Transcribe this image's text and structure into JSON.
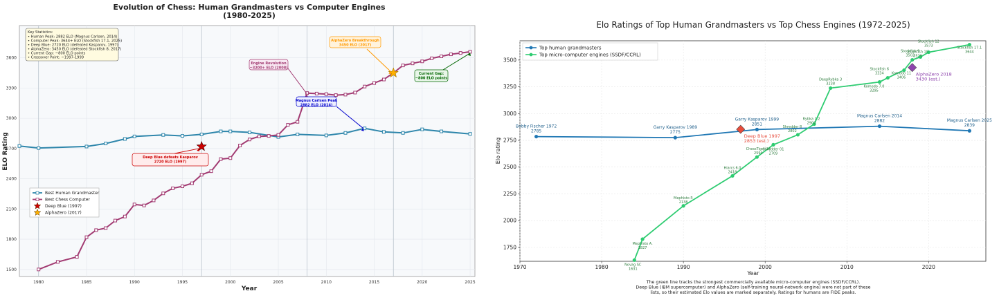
{
  "chart_data": [
    {
      "type": "line",
      "title": "Evolution of Chess: Human Grandmasters vs Computer Engines",
      "subtitle": "(1980-2025)",
      "xlabel": "Year",
      "ylabel": "ELO Rating",
      "xlim": [
        1978,
        2025.5
      ],
      "ylim": [
        1430,
        3920
      ],
      "xticks": [
        1980,
        1985,
        1990,
        1995,
        2000,
        2005,
        2010,
        2015,
        2020,
        2025
      ],
      "yticks": [
        1500,
        1800,
        2100,
        2400,
        2700,
        3000,
        3300,
        3600
      ],
      "vlines": [
        1980,
        1997,
        2008,
        2017
      ],
      "series": [
        {
          "name": "Best Human Grandmaster",
          "color": "#2e86ab",
          "x": [
            1978,
            1980,
            1985,
            1987,
            1989,
            1990,
            1993,
            1995,
            1997,
            1999,
            2000,
            2002,
            2005,
            2007,
            2010,
            2012,
            2014,
            2016,
            2018,
            2020,
            2022,
            2025
          ],
          "y": [
            2725,
            2705,
            2720,
            2750,
            2795,
            2820,
            2835,
            2825,
            2840,
            2870,
            2870,
            2860,
            2815,
            2840,
            2830,
            2855,
            2900,
            2865,
            2855,
            2890,
            2870,
            2845
          ]
        },
        {
          "name": "Best Chess Computer",
          "color": "#a23b72",
          "x": [
            1980,
            1982,
            1984,
            1985,
            1986,
            1987,
            1988,
            1989,
            1990,
            1991,
            1992,
            1993,
            1994,
            1995,
            1996,
            1997,
            1998,
            1999,
            2000,
            2001,
            2002,
            2003,
            2004,
            2005,
            2006,
            2007,
            2008,
            2009,
            2010,
            2011,
            2012,
            2013,
            2014,
            2015,
            2016,
            2017,
            2018,
            2019,
            2020,
            2021,
            2022,
            2023,
            2024,
            2025
          ],
          "y": [
            1500,
            1575,
            1625,
            1820,
            1890,
            1910,
            1985,
            2025,
            2145,
            2135,
            2185,
            2255,
            2305,
            2325,
            2355,
            2440,
            2475,
            2595,
            2605,
            2730,
            2790,
            2820,
            2825,
            2835,
            2935,
            2965,
            3250,
            3245,
            3240,
            3230,
            3235,
            3255,
            3315,
            3350,
            3385,
            3450,
            3525,
            3545,
            3565,
            3595,
            3615,
            3635,
            3648,
            3660
          ]
        },
        {
          "name": "Deep Blue (1997)",
          "x": [
            1997
          ],
          "y": [
            2720
          ],
          "color": "#cc0000",
          "marker": "star"
        },
        {
          "name": "AlphaZero (2017)",
          "x": [
            2017
          ],
          "y": [
            3450
          ],
          "color": "#ffb000",
          "marker": "star"
        }
      ],
      "stats_box": {
        "title": "Key Statistics:",
        "lines": [
          "• Human Peak: 2882 ELO (Magnus Carlsen, 2014)",
          "• Computer Peak: 3644+ ELO (Stockfish 17.1, 2025)",
          "• Deep Blue: 2720 ELO (defeated Kasparov, 1997)",
          "• AlphaZero: 3450 ELO (defeated Stockfish 8, 2017)",
          "• Current Gap: ~800 ELO points",
          "• Crossover Point: ~1997-1999"
        ]
      },
      "annotations": [
        {
          "lines": [
            "Deep Blue defeats Kasparov",
            "2720 ELO (1997)"
          ],
          "color": "#cc0000"
        },
        {
          "lines": [
            "Engine Revolution",
            "~3200+ ELO (2008)"
          ],
          "color": "#a23b72"
        },
        {
          "lines": [
            "Magnus Carlsen Peak",
            "2882 ELO (2014)"
          ],
          "color": "#0000cc"
        },
        {
          "lines": [
            "AlphaZero Breakthrough",
            "3450 ELO (2017)"
          ],
          "color": "#ff9900"
        },
        {
          "lines": [
            "Current Gap:",
            "~800 ELO points"
          ],
          "color": "#006600"
        }
      ],
      "legend_position": "lower-left"
    },
    {
      "type": "line",
      "title": "Elo Ratings of Top Human Grandmasters vs Top Chess Engines (1972-2025)",
      "xlabel": "Year",
      "ylabel": "Elo rating",
      "xlim": [
        1970,
        2027
      ],
      "ylim": [
        1620,
        3680
      ],
      "xticks": [
        1970,
        1980,
        1990,
        2000,
        2010,
        2020
      ],
      "yticks": [
        1750,
        2000,
        2250,
        2500,
        2750,
        3000,
        3250,
        3500
      ],
      "series": [
        {
          "name": "Top human grandmasters",
          "color": "#1f77b4",
          "points": [
            {
              "x": 1972,
              "y": 2785,
              "label": [
                "Bobby Fischer 1972",
                "2785"
              ]
            },
            {
              "x": 1989,
              "y": 2775,
              "label": [
                "Garry Kasparov 1989",
                "2775"
              ]
            },
            {
              "x": 1999,
              "y": 2851,
              "label": [
                "Garry Kasparov 1999",
                "2851"
              ]
            },
            {
              "x": 2014,
              "y": 2882,
              "label": [
                "Magnus Carlsen 2014",
                "2882"
              ]
            },
            {
              "x": 2025,
              "y": 2839,
              "label": [
                "Magnus Carlsen 2025",
                "2839"
              ]
            }
          ]
        },
        {
          "name": "Top micro-computer engines (SSDF/CCRL)",
          "color": "#2ecc71",
          "points": [
            {
              "x": 1984,
              "y": 1631,
              "label": [
                "Novag SC",
                "1631"
              ]
            },
            {
              "x": 1985,
              "y": 1827,
              "label": [
                "Mephisto A.",
                "1827"
              ]
            },
            {
              "x": 1990,
              "y": 2138,
              "label": [
                "Mephisto P.",
                "2138"
              ]
            },
            {
              "x": 1996,
              "y": 2418,
              "label": [
                "Hiarcs 6.0",
                "2418"
              ]
            },
            {
              "x": 1999,
              "y": 2594,
              "label": [
                "ChessTiger 12",
                "2594"
              ]
            },
            {
              "x": 2001,
              "y": 2709,
              "label": [
                "Shredder 01",
                "2709"
              ]
            },
            {
              "x": 2004,
              "y": 2802,
              "label": [
                "Shredder 8",
                "2802"
              ]
            },
            {
              "x": 2006,
              "y": 2902,
              "label": [
                "Rybka 1.2",
                "2902"
              ]
            },
            {
              "x": 2008,
              "y": 3238,
              "label": [
                "DeepRybka 3",
                "3238"
              ]
            },
            {
              "x": 2015,
              "y": 3334,
              "label": [
                "Stockfish 6",
                "3334"
              ]
            },
            {
              "x": 2014,
              "y": 3295,
              "label": [
                "Komodo 7.0",
                "3295"
              ]
            },
            {
              "x": 2017,
              "y": 3406,
              "label": [
                "Komodo 11",
                "3406"
              ]
            },
            {
              "x": 2018,
              "y": 3502,
              "label": [
                "Stockfish 9",
                "3502"
              ]
            },
            {
              "x": 2019,
              "y": 3529,
              "label": [
                "Stockfish 10",
                "3529"
              ]
            },
            {
              "x": 2020,
              "y": 3573,
              "label": [
                "Stockfish 12",
                "3573"
              ]
            },
            {
              "x": 2025,
              "y": 3644,
              "label": [
                "Stockfish 17.1",
                "3644"
              ]
            }
          ]
        }
      ],
      "special_points": [
        {
          "x": 1997,
          "y": 2853,
          "label": [
            "Deep Blue 1997",
            "2853 (est.)"
          ],
          "color": "#e74c3c"
        },
        {
          "x": 2018,
          "y": 3430,
          "label": [
            "AlphaZero 2018",
            "3430 (est.)"
          ],
          "color": "#8e44ad"
        }
      ],
      "caption": [
        "The green line tracks the strongest commercially available micro-computer engines (SSDF/CCRL).",
        "Deep Blue (IBM supercomputer) and AlphaZero (self-training neural-network engine) were not part of these",
        "lists, so their estimated Elo values are marked separately. Ratings for humans are FIDE peaks."
      ],
      "legend_position": "upper-left"
    }
  ]
}
